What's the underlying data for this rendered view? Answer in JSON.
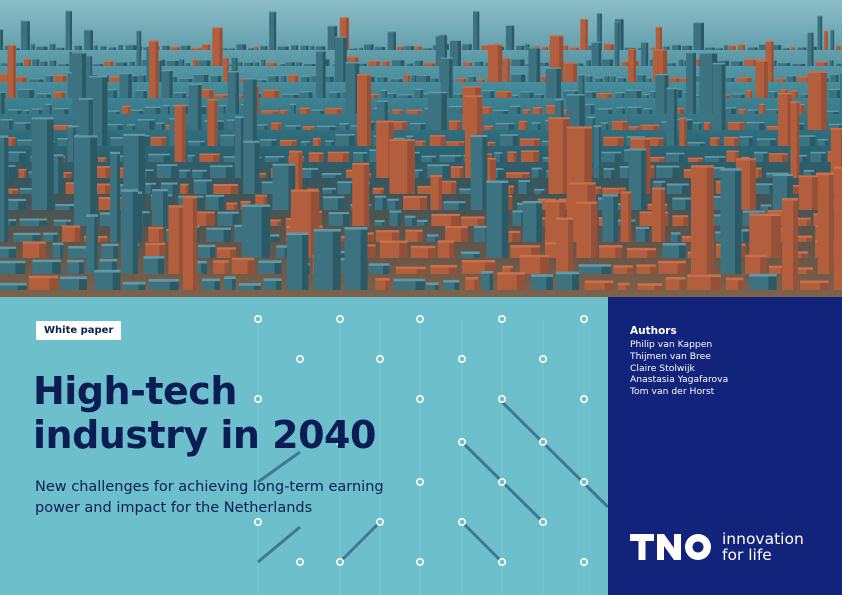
{
  "cover": {
    "badge": "White paper",
    "title_line1": "High-tech",
    "title_line2": "industry in 2040",
    "subtitle_line1": "New challenges for achieving long-term earning",
    "subtitle_line2": "power and impact for the Netherlands"
  },
  "authors": {
    "heading": "Authors",
    "names": [
      "Philip van Kappen",
      "Thijmen van Bree",
      "Claire Stolwijk",
      "Anastasia Yagafarova",
      "Tom van der Horst"
    ]
  },
  "brand": {
    "logo": "TNO",
    "tagline_line1": "innovation",
    "tagline_line2": "for life"
  },
  "colors": {
    "navy": "#11237a",
    "cyan": "#6dbfcb",
    "title": "#0c1d55",
    "glow": "#e8834a"
  }
}
